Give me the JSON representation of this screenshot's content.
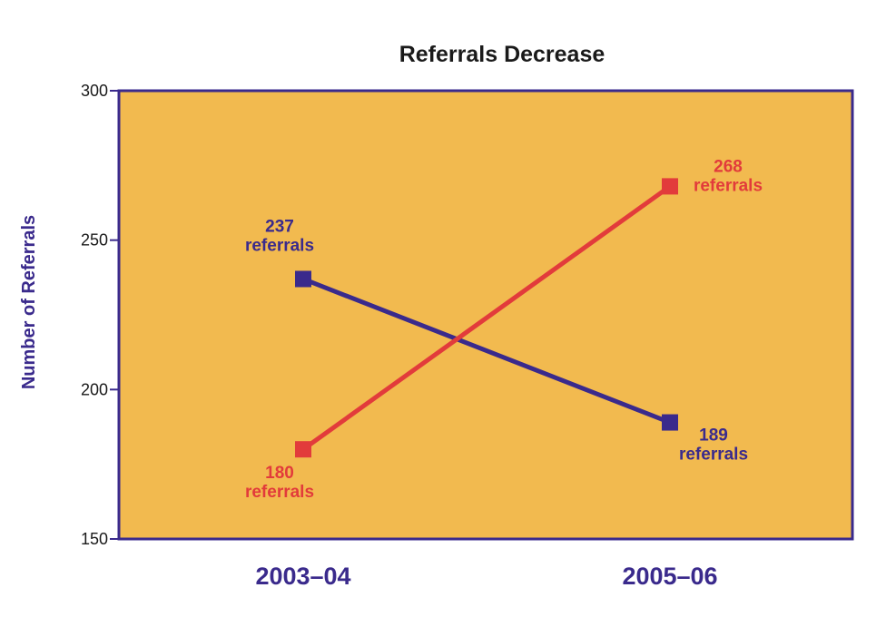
{
  "chart_data": {
    "type": "line",
    "title": "Referrals Decrease",
    "ylabel": "Number of Referrals",
    "xlabel": "",
    "categories": [
      "2003–04",
      "2005–06"
    ],
    "ylim": [
      150,
      300
    ],
    "yticks": [
      150,
      200,
      250,
      300
    ],
    "grid": false,
    "plot_background": "#F2BA4F",
    "series": [
      {
        "values": [
          237,
          189
        ],
        "color": "#3A2A8C",
        "labels": [
          [
            "237",
            "referrals"
          ],
          [
            "189",
            "referrals"
          ]
        ]
      },
      {
        "values": [
          180,
          268
        ],
        "color": "#E23B3B",
        "labels": [
          [
            "180",
            "referrals"
          ],
          [
            "268",
            "referrals"
          ]
        ]
      }
    ]
  }
}
